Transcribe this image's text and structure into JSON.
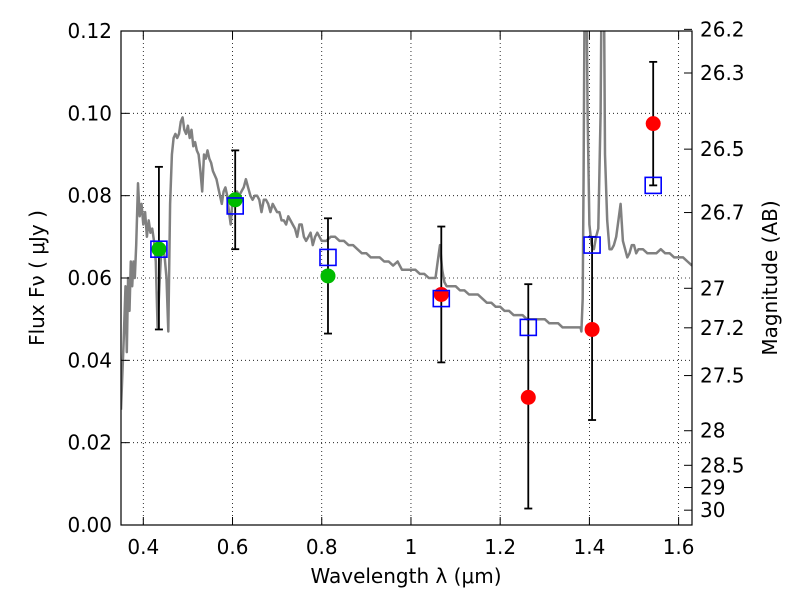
{
  "chart_data": {
    "type": "scatter",
    "xlabel": "Wavelength  λ (μm)",
    "ylabel_left": "Flux  Fν  ( μJy )",
    "ylabel_right": "Magnitude (AB)",
    "xlim": [
      0.35,
      1.63
    ],
    "ylim": [
      0.0,
      0.12
    ],
    "grid": true,
    "x_ticks": [
      0.4,
      0.6,
      0.8,
      1.0,
      1.2,
      1.4,
      1.6
    ],
    "x_tick_labels": [
      "0.4",
      "0.6",
      "0.8",
      "1",
      "1.2",
      "1.4",
      "1.6"
    ],
    "y_ticks": [
      0.0,
      0.02,
      0.04,
      0.06,
      0.08,
      0.1,
      0.12
    ],
    "y_tick_labels": [
      "0.00",
      "0.02",
      "0.04",
      "0.06",
      "0.08",
      "0.10",
      "0.12"
    ],
    "right_ticks": [
      {
        "label": "26.2",
        "flux": 0.1204
      },
      {
        "label": "26.3",
        "flux": 0.1098
      },
      {
        "label": "26.5",
        "flux": 0.0913
      },
      {
        "label": "26.7",
        "flux": 0.0759
      },
      {
        "label": "27",
        "flux": 0.0575
      },
      {
        "label": "27.2",
        "flux": 0.0479
      },
      {
        "label": "27.5",
        "flux": 0.0363
      },
      {
        "label": "28",
        "flux": 0.0229
      },
      {
        "label": "28.5",
        "flux": 0.0145
      },
      {
        "label": "29",
        "flux": 0.0091
      },
      {
        "label": "30",
        "flux": 0.0036
      }
    ],
    "series": [
      {
        "name": "model-spectrum",
        "kind": "line",
        "color": "#808080",
        "points": [
          [
            0.35,
            0.028
          ],
          [
            0.356,
            0.045
          ],
          [
            0.36,
            0.058
          ],
          [
            0.363,
            0.042
          ],
          [
            0.366,
            0.06
          ],
          [
            0.369,
            0.052
          ],
          [
            0.372,
            0.064
          ],
          [
            0.375,
            0.058
          ],
          [
            0.378,
            0.064
          ],
          [
            0.381,
            0.06
          ],
          [
            0.384,
            0.068
          ],
          [
            0.388,
            0.083
          ],
          [
            0.392,
            0.075
          ],
          [
            0.396,
            0.078
          ],
          [
            0.4,
            0.073
          ],
          [
            0.404,
            0.076
          ],
          [
            0.408,
            0.07
          ],
          [
            0.412,
            0.074
          ],
          [
            0.416,
            0.071
          ],
          [
            0.42,
            0.072
          ],
          [
            0.424,
            0.069
          ],
          [
            0.428,
            0.064
          ],
          [
            0.432,
            0.048
          ],
          [
            0.436,
            0.058
          ],
          [
            0.44,
            0.066
          ],
          [
            0.444,
            0.068
          ],
          [
            0.448,
            0.065
          ],
          [
            0.452,
            0.06
          ],
          [
            0.456,
            0.047
          ],
          [
            0.46,
            0.078
          ],
          [
            0.464,
            0.09
          ],
          [
            0.468,
            0.094
          ],
          [
            0.472,
            0.095
          ],
          [
            0.476,
            0.094
          ],
          [
            0.48,
            0.095
          ],
          [
            0.484,
            0.098
          ],
          [
            0.488,
            0.099
          ],
          [
            0.492,
            0.096
          ],
          [
            0.496,
            0.095
          ],
          [
            0.5,
            0.097
          ],
          [
            0.504,
            0.094
          ],
          [
            0.508,
            0.096
          ],
          [
            0.512,
            0.092
          ],
          [
            0.516,
            0.093
          ],
          [
            0.52,
            0.091
          ],
          [
            0.524,
            0.09
          ],
          [
            0.528,
            0.086
          ],
          [
            0.532,
            0.081
          ],
          [
            0.536,
            0.09
          ],
          [
            0.54,
            0.089
          ],
          [
            0.544,
            0.091
          ],
          [
            0.548,
            0.089
          ],
          [
            0.552,
            0.088
          ],
          [
            0.556,
            0.086
          ],
          [
            0.56,
            0.085
          ],
          [
            0.564,
            0.084
          ],
          [
            0.568,
            0.082
          ],
          [
            0.572,
            0.08
          ],
          [
            0.576,
            0.078
          ],
          [
            0.58,
            0.081
          ],
          [
            0.584,
            0.082
          ],
          [
            0.588,
            0.08
          ],
          [
            0.592,
            0.076
          ],
          [
            0.596,
            0.073
          ],
          [
            0.6,
            0.079
          ],
          [
            0.605,
            0.08
          ],
          [
            0.61,
            0.081
          ],
          [
            0.615,
            0.08
          ],
          [
            0.62,
            0.081
          ],
          [
            0.625,
            0.082
          ],
          [
            0.63,
            0.084
          ],
          [
            0.635,
            0.082
          ],
          [
            0.64,
            0.08
          ],
          [
            0.645,
            0.079
          ],
          [
            0.65,
            0.08
          ],
          [
            0.655,
            0.08
          ],
          [
            0.66,
            0.079
          ],
          [
            0.665,
            0.076
          ],
          [
            0.67,
            0.079
          ],
          [
            0.675,
            0.079
          ],
          [
            0.68,
            0.078
          ],
          [
            0.685,
            0.076
          ],
          [
            0.69,
            0.078
          ],
          [
            0.695,
            0.077
          ],
          [
            0.7,
            0.076
          ],
          [
            0.705,
            0.076
          ],
          [
            0.71,
            0.074
          ],
          [
            0.715,
            0.074
          ],
          [
            0.72,
            0.073
          ],
          [
            0.725,
            0.075
          ],
          [
            0.73,
            0.074
          ],
          [
            0.735,
            0.073
          ],
          [
            0.74,
            0.072
          ],
          [
            0.745,
            0.07
          ],
          [
            0.75,
            0.073
          ],
          [
            0.755,
            0.073
          ],
          [
            0.76,
            0.07
          ],
          [
            0.765,
            0.069
          ],
          [
            0.77,
            0.07
          ],
          [
            0.775,
            0.071
          ],
          [
            0.78,
            0.068
          ],
          [
            0.785,
            0.07
          ],
          [
            0.79,
            0.071
          ],
          [
            0.795,
            0.07
          ],
          [
            0.8,
            0.069
          ],
          [
            0.81,
            0.069
          ],
          [
            0.82,
            0.07
          ],
          [
            0.83,
            0.07
          ],
          [
            0.84,
            0.069
          ],
          [
            0.85,
            0.069
          ],
          [
            0.86,
            0.068
          ],
          [
            0.87,
            0.068
          ],
          [
            0.88,
            0.067
          ],
          [
            0.89,
            0.066
          ],
          [
            0.9,
            0.066
          ],
          [
            0.91,
            0.065
          ],
          [
            0.92,
            0.065
          ],
          [
            0.93,
            0.065
          ],
          [
            0.94,
            0.064
          ],
          [
            0.95,
            0.064
          ],
          [
            0.96,
            0.063
          ],
          [
            0.97,
            0.064
          ],
          [
            0.98,
            0.062
          ],
          [
            0.99,
            0.062
          ],
          [
            1.0,
            0.062
          ],
          [
            1.01,
            0.062
          ],
          [
            1.02,
            0.061
          ],
          [
            1.03,
            0.061
          ],
          [
            1.04,
            0.06
          ],
          [
            1.05,
            0.06
          ],
          [
            1.055,
            0.06
          ],
          [
            1.06,
            0.064
          ],
          [
            1.065,
            0.068
          ],
          [
            1.07,
            0.062
          ],
          [
            1.075,
            0.059
          ],
          [
            1.08,
            0.058
          ],
          [
            1.09,
            0.058
          ],
          [
            1.1,
            0.058
          ],
          [
            1.11,
            0.057
          ],
          [
            1.12,
            0.057
          ],
          [
            1.13,
            0.056
          ],
          [
            1.14,
            0.056
          ],
          [
            1.15,
            0.056
          ],
          [
            1.16,
            0.055
          ],
          [
            1.17,
            0.054
          ],
          [
            1.18,
            0.054
          ],
          [
            1.19,
            0.053
          ],
          [
            1.2,
            0.053
          ],
          [
            1.21,
            0.052
          ],
          [
            1.22,
            0.052
          ],
          [
            1.23,
            0.051
          ],
          [
            1.24,
            0.051
          ],
          [
            1.25,
            0.051
          ],
          [
            1.26,
            0.05
          ],
          [
            1.27,
            0.05
          ],
          [
            1.28,
            0.05
          ],
          [
            1.29,
            0.05
          ],
          [
            1.3,
            0.05
          ],
          [
            1.31,
            0.049
          ],
          [
            1.32,
            0.049
          ],
          [
            1.33,
            0.049
          ],
          [
            1.34,
            0.048
          ],
          [
            1.35,
            0.048
          ],
          [
            1.36,
            0.048
          ],
          [
            1.37,
            0.048
          ],
          [
            1.38,
            0.048
          ],
          [
            1.382,
            0.047
          ],
          [
            1.385,
            0.055
          ],
          [
            1.387,
            0.085
          ],
          [
            1.389,
            0.125
          ],
          [
            1.394,
            0.125
          ],
          [
            1.396,
            0.1
          ],
          [
            1.4,
            0.073
          ],
          [
            1.405,
            0.068
          ],
          [
            1.41,
            0.067
          ],
          [
            1.415,
            0.07
          ],
          [
            1.42,
            0.072
          ],
          [
            1.425,
            0.1
          ],
          [
            1.427,
            0.125
          ],
          [
            1.433,
            0.125
          ],
          [
            1.435,
            0.09
          ],
          [
            1.44,
            0.074
          ],
          [
            1.445,
            0.067
          ],
          [
            1.45,
            0.067
          ],
          [
            1.455,
            0.068
          ],
          [
            1.46,
            0.07
          ],
          [
            1.465,
            0.074
          ],
          [
            1.47,
            0.078
          ],
          [
            1.475,
            0.069
          ],
          [
            1.48,
            0.067
          ],
          [
            1.485,
            0.065
          ],
          [
            1.49,
            0.066
          ],
          [
            1.495,
            0.068
          ],
          [
            1.5,
            0.068
          ],
          [
            1.505,
            0.066
          ],
          [
            1.51,
            0.067
          ],
          [
            1.52,
            0.067
          ],
          [
            1.53,
            0.066
          ],
          [
            1.54,
            0.066
          ],
          [
            1.55,
            0.066
          ],
          [
            1.56,
            0.067
          ],
          [
            1.57,
            0.066
          ],
          [
            1.58,
            0.066
          ],
          [
            1.59,
            0.065
          ],
          [
            1.6,
            0.065
          ],
          [
            1.61,
            0.065
          ],
          [
            1.62,
            0.064
          ],
          [
            1.63,
            0.063
          ]
        ]
      },
      {
        "name": "observed-photometry",
        "kind": "errorbar",
        "color": "#000000",
        "points": [
          {
            "x": 0.435,
            "y": 0.067,
            "lo": 0.0475,
            "hi": 0.087
          },
          {
            "x": 0.606,
            "y": 0.079,
            "lo": 0.067,
            "hi": 0.091
          },
          {
            "x": 0.814,
            "y": 0.0605,
            "lo": 0.0465,
            "hi": 0.0745
          },
          {
            "x": 1.068,
            "y": 0.056,
            "lo": 0.0395,
            "hi": 0.0725
          },
          {
            "x": 1.263,
            "y": 0.031,
            "lo": 0.004,
            "hi": 0.0585
          },
          {
            "x": 1.406,
            "y": 0.0475,
            "lo": 0.0255,
            "hi": 0.07
          },
          {
            "x": 1.543,
            "y": 0.0975,
            "lo": 0.0825,
            "hi": 0.1125
          }
        ]
      },
      {
        "name": "green-points",
        "kind": "marker-circle",
        "color": "#00bb00",
        "points": [
          [
            0.435,
            0.067
          ],
          [
            0.606,
            0.079
          ],
          [
            0.814,
            0.0605
          ]
        ]
      },
      {
        "name": "red-points",
        "kind": "marker-circle",
        "color": "#ff0000",
        "points": [
          [
            1.068,
            0.056
          ],
          [
            1.263,
            0.031
          ],
          [
            1.406,
            0.0475
          ],
          [
            1.543,
            0.0975
          ]
        ]
      },
      {
        "name": "model-bandpass-squares",
        "kind": "marker-square",
        "color": "#0000ff",
        "points": [
          [
            0.435,
            0.067
          ],
          [
            0.606,
            0.0775
          ],
          [
            0.814,
            0.065
          ],
          [
            1.068,
            0.055
          ],
          [
            1.263,
            0.048
          ],
          [
            1.406,
            0.068
          ],
          [
            1.543,
            0.0825
          ]
        ]
      }
    ]
  }
}
